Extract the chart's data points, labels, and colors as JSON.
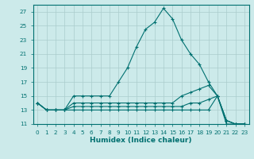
{
  "xlabel": "Humidex (Indice chaleur)",
  "ylabel": "",
  "bg_color": "#cceaea",
  "grid_color": "#aacccc",
  "line_color": "#007070",
  "x_min": -0.5,
  "x_max": 23.5,
  "y_min": 11,
  "y_max": 28,
  "yticks": [
    11,
    13,
    15,
    17,
    19,
    21,
    23,
    25,
    27
  ],
  "xticks": [
    0,
    1,
    2,
    3,
    4,
    5,
    6,
    7,
    8,
    9,
    10,
    11,
    12,
    13,
    14,
    15,
    16,
    17,
    18,
    19,
    20,
    21,
    22,
    23
  ],
  "series": [
    {
      "x": [
        0,
        1,
        2,
        3,
        4,
        5,
        6,
        7,
        8,
        9,
        10,
        11,
        12,
        13,
        14,
        15,
        16,
        17,
        18,
        19,
        20,
        21,
        22,
        23
      ],
      "y": [
        14,
        13,
        13,
        13,
        15,
        15,
        15,
        15,
        15,
        17,
        19,
        22,
        24.5,
        25.5,
        27.5,
        26,
        23,
        21,
        19.5,
        17,
        15,
        11.5,
        11,
        11
      ]
    },
    {
      "x": [
        0,
        1,
        2,
        3,
        4,
        5,
        6,
        7,
        8,
        9,
        10,
        11,
        12,
        13,
        14,
        15,
        16,
        17,
        18,
        19,
        20,
        21,
        22,
        23
      ],
      "y": [
        14,
        13,
        13,
        13,
        14,
        14,
        14,
        14,
        14,
        14,
        14,
        14,
        14,
        14,
        14,
        14,
        15,
        15.5,
        16,
        16.5,
        15,
        11.5,
        11,
        11
      ]
    },
    {
      "x": [
        0,
        1,
        2,
        3,
        4,
        5,
        6,
        7,
        8,
        9,
        10,
        11,
        12,
        13,
        14,
        15,
        16,
        17,
        18,
        19,
        20,
        21,
        22,
        23
      ],
      "y": [
        14,
        13,
        13,
        13,
        13.5,
        13.5,
        13.5,
        13.5,
        13.5,
        13.5,
        13.5,
        13.5,
        13.5,
        13.5,
        13.5,
        13.5,
        13.5,
        14,
        14,
        14.5,
        15,
        11.5,
        11,
        11
      ]
    },
    {
      "x": [
        0,
        1,
        2,
        3,
        4,
        5,
        6,
        7,
        8,
        9,
        10,
        11,
        12,
        13,
        14,
        15,
        16,
        17,
        18,
        19,
        20,
        21,
        22,
        23
      ],
      "y": [
        14,
        13,
        13,
        13,
        13,
        13,
        13,
        13,
        13,
        13,
        13,
        13,
        13,
        13,
        13,
        13,
        13,
        13,
        13,
        13,
        15,
        11,
        11,
        11
      ]
    }
  ]
}
